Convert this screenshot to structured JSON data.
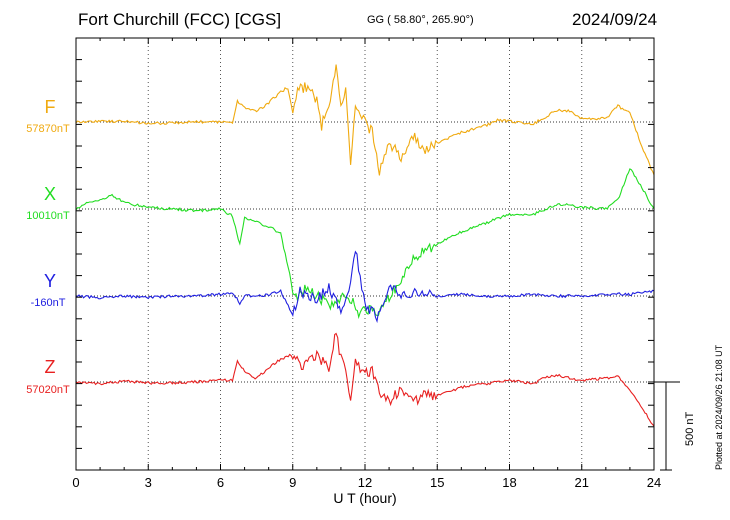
{
  "header": {
    "title": "Fort Churchill (FCC)  [CGS]",
    "coords": "GG ( 58.80°, 265.90°)",
    "date": "2024/09/24"
  },
  "footer": {
    "plotted": "Plotted at 2024/09/26 21:08 UT",
    "scale_label": "500 nT"
  },
  "chart_data": {
    "type": "line",
    "xlabel": "U T (hour)",
    "xlim": [
      0,
      24
    ],
    "xticks": [
      "0",
      "3",
      "6",
      "9",
      "12",
      "15",
      "18",
      "21",
      "24"
    ],
    "scale_bar_nT": 500,
    "series": [
      {
        "name": "F",
        "baseline_label": "57870nT",
        "baseline_nT": 57870,
        "color": "#f0aa10",
        "points": [
          [
            0,
            0
          ],
          [
            1,
            5
          ],
          [
            2,
            3
          ],
          [
            3,
            -8
          ],
          [
            4,
            -5
          ],
          [
            5,
            2
          ],
          [
            6,
            -2
          ],
          [
            6.5,
            0
          ],
          [
            6.7,
            120
          ],
          [
            7,
            80
          ],
          [
            7.5,
            60
          ],
          [
            8,
            110
          ],
          [
            8.5,
            170
          ],
          [
            8.8,
            200
          ],
          [
            9,
            50
          ],
          [
            9.2,
            180
          ],
          [
            9.5,
            200
          ],
          [
            10,
            130
          ],
          [
            10.2,
            -20
          ],
          [
            10.5,
            100
          ],
          [
            10.8,
            320
          ],
          [
            11,
            80
          ],
          [
            11.2,
            180
          ],
          [
            11.4,
            -250
          ],
          [
            11.6,
            80
          ],
          [
            12,
            0
          ],
          [
            12.3,
            -60
          ],
          [
            12.6,
            -280
          ],
          [
            13,
            -120
          ],
          [
            13.5,
            -200
          ],
          [
            14,
            -80
          ],
          [
            14.5,
            -160
          ],
          [
            15,
            -120
          ],
          [
            16,
            -60
          ],
          [
            17,
            -20
          ],
          [
            17.5,
            10
          ],
          [
            18,
            5
          ],
          [
            19,
            -10
          ],
          [
            19.5,
            30
          ],
          [
            20,
            70
          ],
          [
            20.5,
            60
          ],
          [
            21,
            20
          ],
          [
            22,
            20
          ],
          [
            22.5,
            90
          ],
          [
            23,
            50
          ],
          [
            23.5,
            -140
          ],
          [
            24,
            -300
          ]
        ]
      },
      {
        "name": "X",
        "baseline_label": "10010nT",
        "baseline_nT": 10010,
        "color": "#22dd22",
        "points": [
          [
            0,
            0
          ],
          [
            0.5,
            40
          ],
          [
            1,
            50
          ],
          [
            1.5,
            80
          ],
          [
            2,
            35
          ],
          [
            3,
            10
          ],
          [
            4,
            0
          ],
          [
            5,
            -10
          ],
          [
            6,
            0
          ],
          [
            6.5,
            -40
          ],
          [
            6.8,
            -200
          ],
          [
            7,
            -50
          ],
          [
            8,
            -100
          ],
          [
            8.5,
            -140
          ],
          [
            9,
            -450
          ],
          [
            9.2,
            -520
          ],
          [
            9.5,
            -450
          ],
          [
            10,
            -490
          ],
          [
            10.5,
            -550
          ],
          [
            11,
            -500
          ],
          [
            11.5,
            -520
          ],
          [
            11.8,
            -600
          ],
          [
            12,
            -560
          ],
          [
            12.5,
            -600
          ],
          [
            13,
            -500
          ],
          [
            13.5,
            -400
          ],
          [
            14,
            -290
          ],
          [
            14.5,
            -230
          ],
          [
            15,
            -200
          ],
          [
            16,
            -130
          ],
          [
            17,
            -80
          ],
          [
            18,
            -30
          ],
          [
            19,
            -30
          ],
          [
            20,
            30
          ],
          [
            21,
            10
          ],
          [
            22,
            0
          ],
          [
            22.5,
            50
          ],
          [
            23,
            230
          ],
          [
            23.5,
            120
          ],
          [
            24,
            0
          ]
        ]
      },
      {
        "name": "Y",
        "baseline_label": "-160nT",
        "baseline_nT": -160,
        "color": "#2020e0",
        "points": [
          [
            0,
            0
          ],
          [
            1,
            -10
          ],
          [
            2,
            0
          ],
          [
            3,
            -10
          ],
          [
            4,
            0
          ],
          [
            5,
            0
          ],
          [
            6,
            10
          ],
          [
            6.5,
            20
          ],
          [
            6.8,
            -40
          ],
          [
            7,
            0
          ],
          [
            8,
            5
          ],
          [
            8.5,
            30
          ],
          [
            9,
            -110
          ],
          [
            9.3,
            30
          ],
          [
            10,
            -20
          ],
          [
            10.5,
            50
          ],
          [
            11,
            -80
          ],
          [
            11.4,
            60
          ],
          [
            11.6,
            280
          ],
          [
            12,
            -50
          ],
          [
            12.5,
            -120
          ],
          [
            13,
            60
          ],
          [
            13.5,
            0
          ],
          [
            14,
            20
          ],
          [
            15,
            0
          ],
          [
            16,
            10
          ],
          [
            17,
            0
          ],
          [
            18,
            0
          ],
          [
            19,
            10
          ],
          [
            20,
            0
          ],
          [
            21,
            0
          ],
          [
            22,
            10
          ],
          [
            23,
            10
          ],
          [
            24,
            30
          ]
        ]
      },
      {
        "name": "Z",
        "baseline_label": "57020nT",
        "baseline_nT": 57020,
        "color": "#e82020",
        "points": [
          [
            0,
            0
          ],
          [
            1,
            -10
          ],
          [
            2,
            5
          ],
          [
            3,
            -5
          ],
          [
            4,
            -5
          ],
          [
            5,
            0
          ],
          [
            6,
            10
          ],
          [
            6.5,
            10
          ],
          [
            6.7,
            120
          ],
          [
            7,
            60
          ],
          [
            7.5,
            20
          ],
          [
            8,
            80
          ],
          [
            8.5,
            130
          ],
          [
            9,
            160
          ],
          [
            9.3,
            90
          ],
          [
            10,
            150
          ],
          [
            10.5,
            80
          ],
          [
            10.8,
            280
          ],
          [
            11,
            130
          ],
          [
            11.2,
            90
          ],
          [
            11.4,
            -100
          ],
          [
            11.6,
            120
          ],
          [
            12,
            50
          ],
          [
            12.3,
            60
          ],
          [
            12.6,
            -60
          ],
          [
            13,
            -120
          ],
          [
            13.5,
            -30
          ],
          [
            14,
            -120
          ],
          [
            14.5,
            -60
          ],
          [
            15,
            -80
          ],
          [
            16,
            -30
          ],
          [
            17,
            -10
          ],
          [
            18,
            10
          ],
          [
            19,
            -10
          ],
          [
            19.5,
            30
          ],
          [
            20,
            40
          ],
          [
            20.5,
            20
          ],
          [
            21,
            10
          ],
          [
            22,
            20
          ],
          [
            22.5,
            30
          ],
          [
            23,
            -50
          ],
          [
            23.5,
            -150
          ],
          [
            24,
            -250
          ]
        ]
      }
    ]
  }
}
